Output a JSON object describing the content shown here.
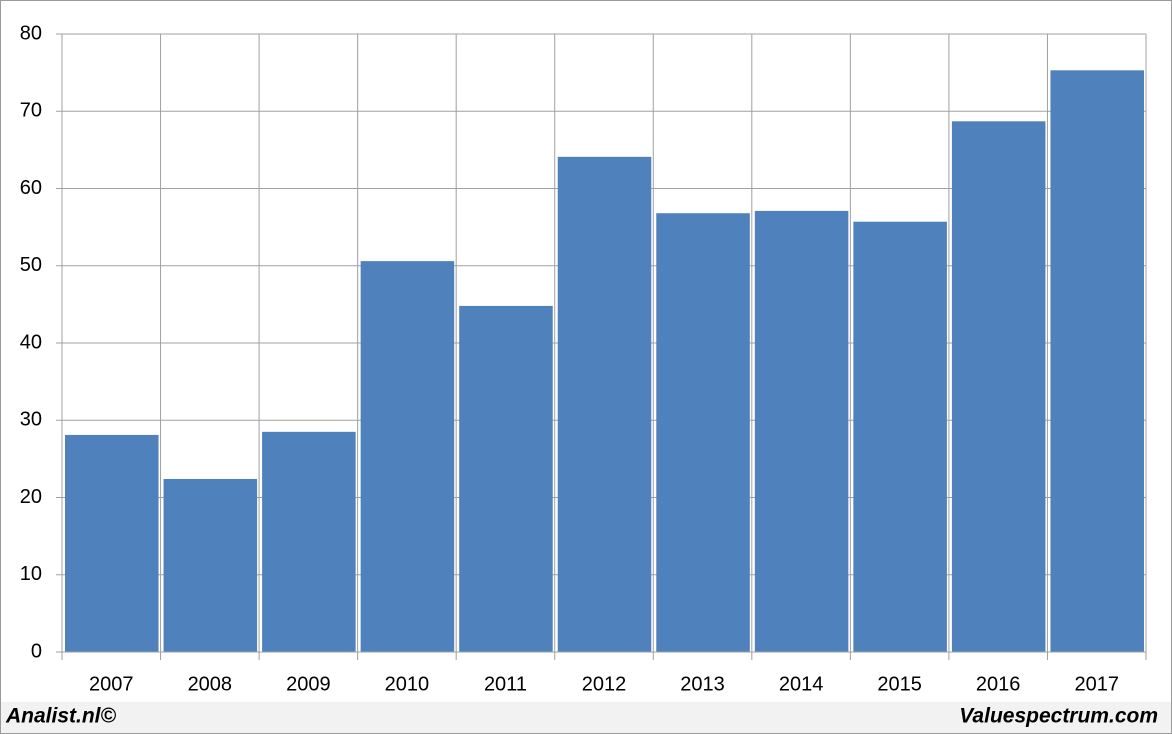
{
  "chart_data": {
    "type": "bar",
    "categories": [
      "2007",
      "2008",
      "2009",
      "2010",
      "2011",
      "2012",
      "2013",
      "2014",
      "2015",
      "2016",
      "2017"
    ],
    "values": [
      28.1,
      22.4,
      28.5,
      50.6,
      44.8,
      64.1,
      56.8,
      57.1,
      55.7,
      68.7,
      75.3
    ],
    "color": "#4f81bd",
    "ylim": [
      0,
      80
    ],
    "yticks": [
      0,
      10,
      20,
      30,
      40,
      50,
      60,
      70,
      80
    ],
    "grid": true,
    "footer_left": "Analist.nl©",
    "footer_right": "Valuespectrum.com"
  }
}
